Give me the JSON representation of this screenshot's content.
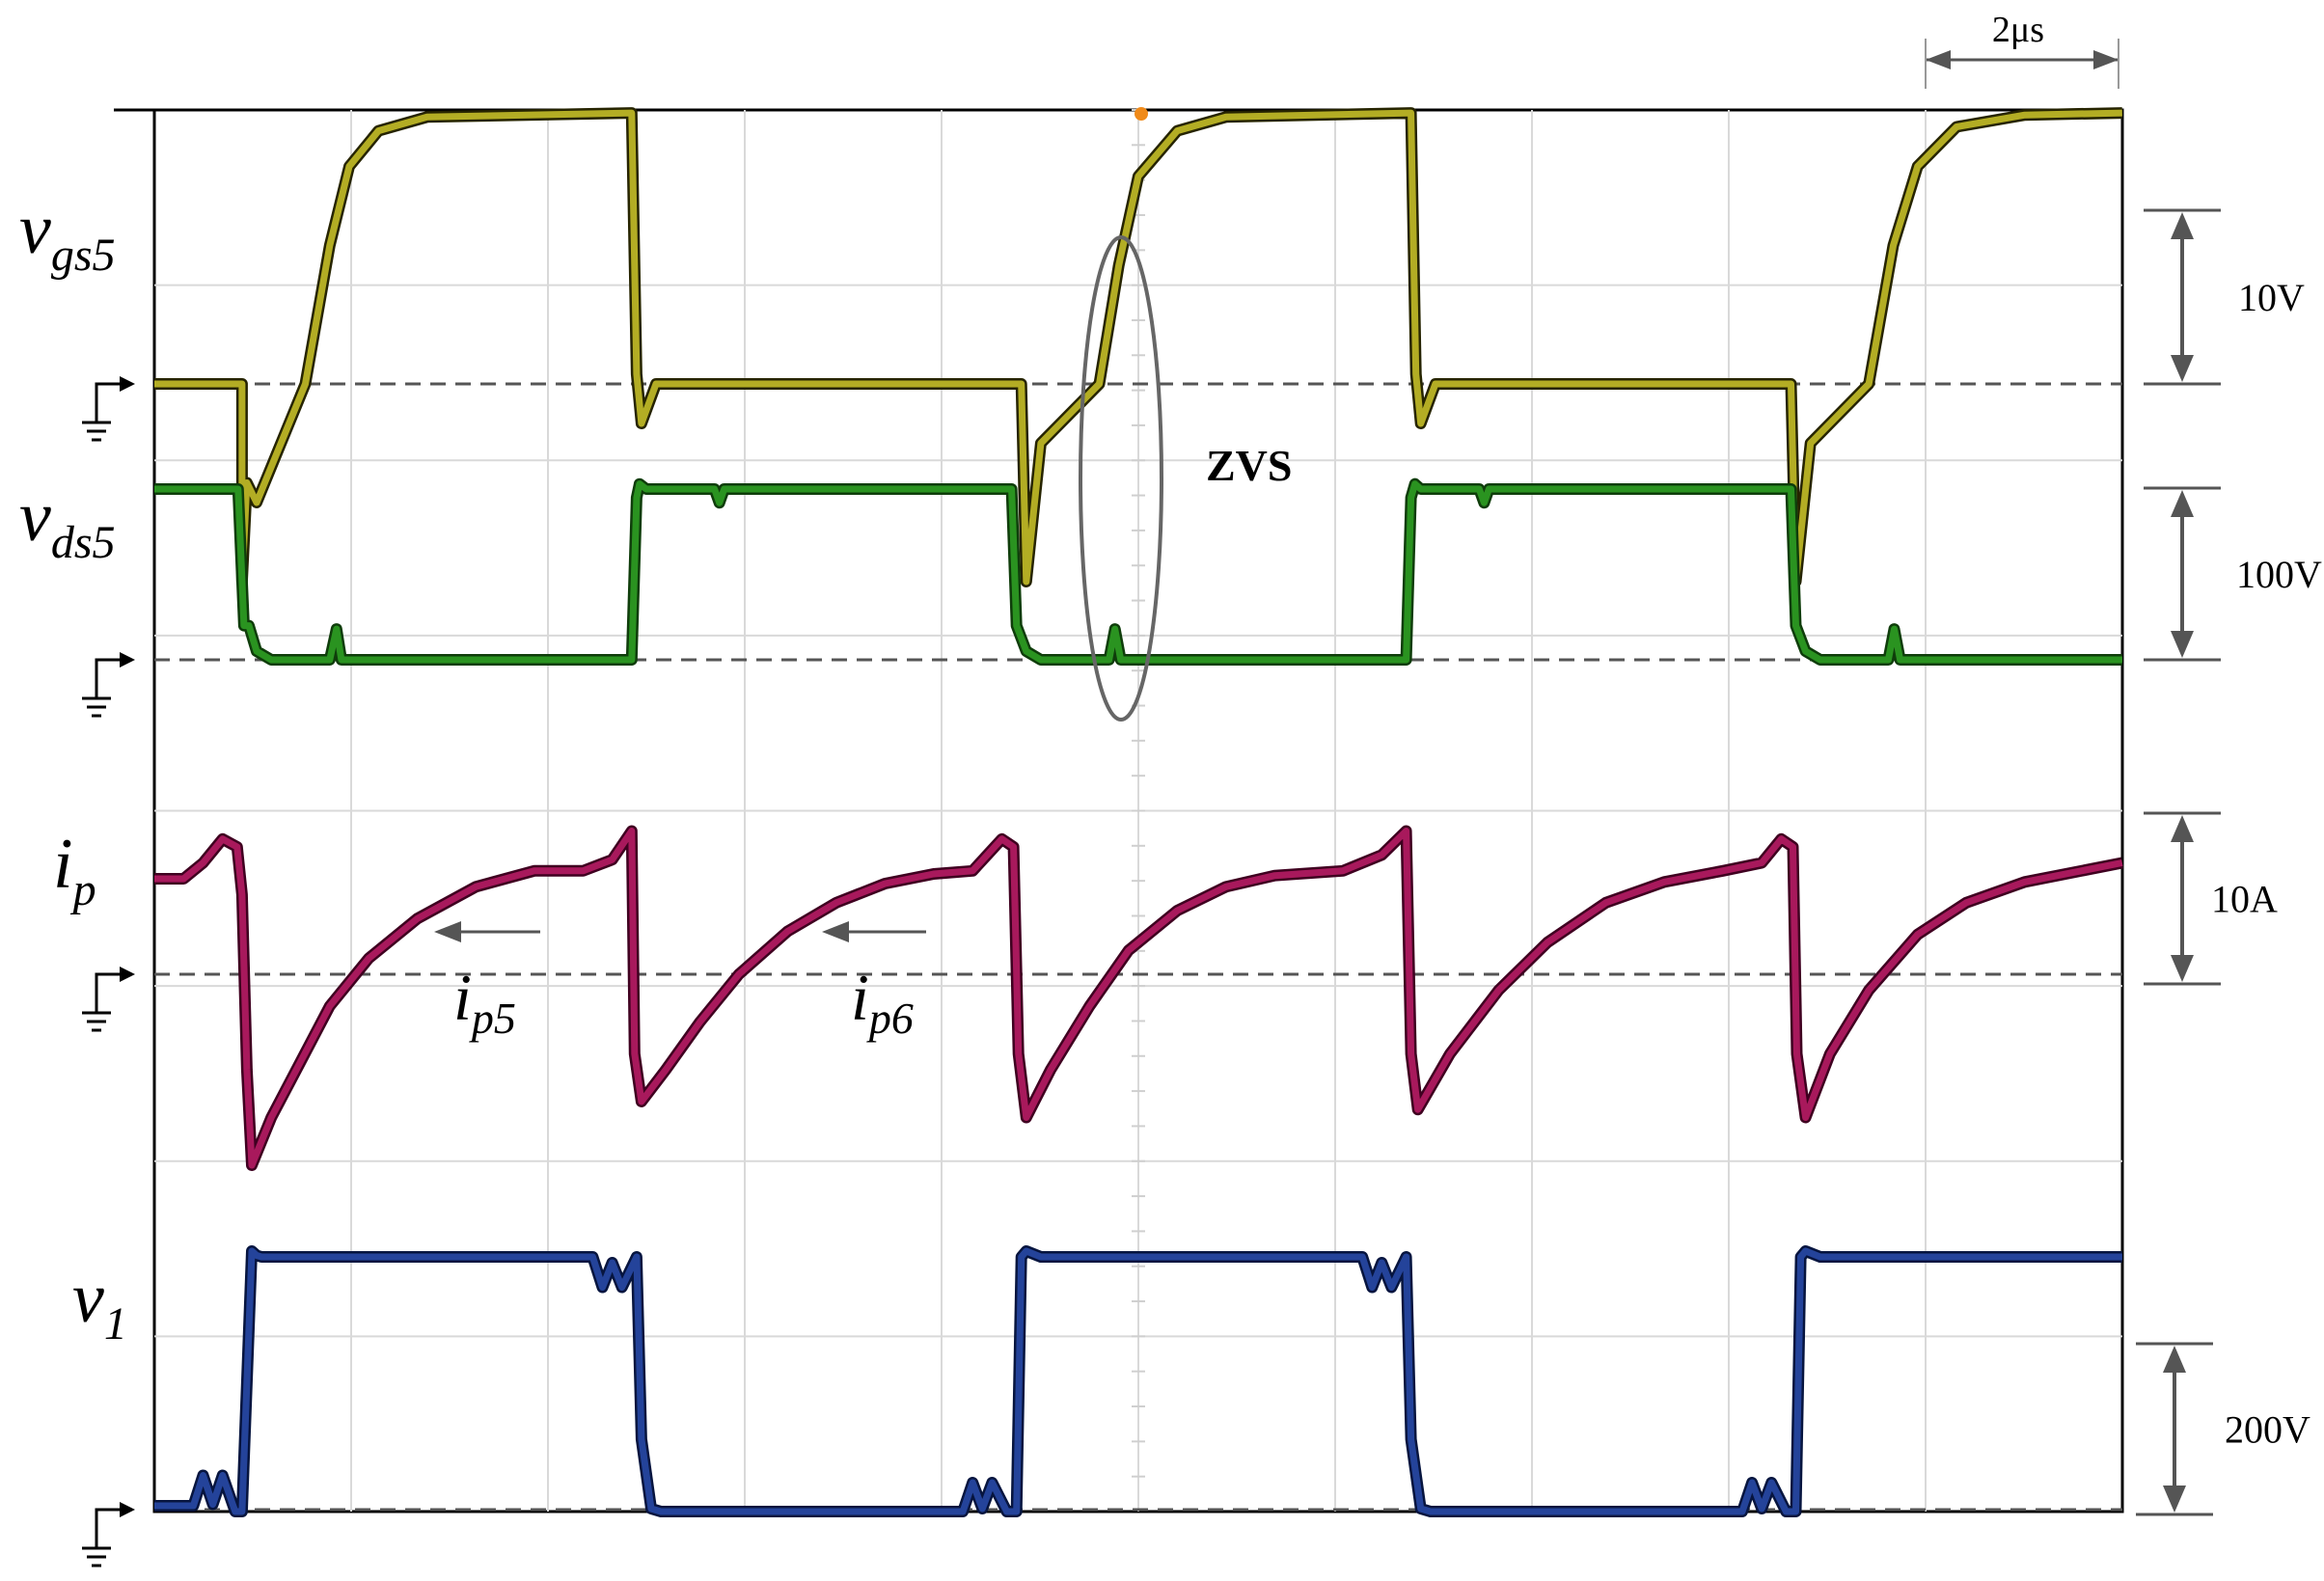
{
  "chart_data": {
    "type": "line",
    "title": "",
    "xlabel": "",
    "ylabel": "",
    "time_scale": "2μs",
    "grid": true,
    "x_divisions": 10,
    "y_divisions": 8,
    "period_us": 8,
    "duty_cycle": 0.5,
    "annotations": [
      {
        "text": "ZVS",
        "kind": "ellipse",
        "target": "vgs5 rise / vds5 at zero"
      },
      {
        "text": "ip5",
        "kind": "arrow-left"
      },
      {
        "text": "ip6",
        "kind": "arrow-left"
      }
    ],
    "series": [
      {
        "id": "vgs5",
        "label_main": "v",
        "label_sub": "gs5",
        "scale_label": "10V",
        "color": "#b3ad24",
        "edge_color": "#262400",
        "points": [
          [
            0,
            0
          ],
          [
            0.9,
            0
          ],
          [
            0.9,
            -1.0
          ],
          [
            0.95,
            -0.5
          ],
          [
            1.05,
            -0.6
          ],
          [
            1.55,
            0
          ],
          [
            1.8,
            0.7
          ],
          [
            2.0,
            1.1
          ],
          [
            2.3,
            1.28
          ],
          [
            2.8,
            1.35
          ],
          [
            4.9,
            1.37
          ],
          [
            4.95,
            0.05
          ],
          [
            5.0,
            -0.2
          ],
          [
            5.15,
            0.0
          ],
          [
            8.9,
            0
          ],
          [
            8.95,
            -1.0
          ],
          [
            9.1,
            -0.3
          ],
          [
            9.7,
            0
          ],
          [
            9.9,
            0.6
          ],
          [
            10.1,
            1.05
          ],
          [
            10.5,
            1.28
          ],
          [
            11.0,
            1.35
          ],
          [
            12.9,
            1.37
          ],
          [
            12.95,
            0.05
          ],
          [
            13.0,
            -0.2
          ],
          [
            13.15,
            0
          ],
          [
            16.8,
            0
          ],
          [
            16.85,
            -1.0
          ],
          [
            17.0,
            -0.3
          ],
          [
            17.6,
            0
          ],
          [
            17.85,
            0.7
          ],
          [
            18.1,
            1.1
          ],
          [
            18.5,
            1.3
          ],
          [
            19.2,
            1.36
          ],
          [
            20.2,
            1.37
          ]
        ]
      },
      {
        "id": "vds5",
        "label_main": "v",
        "label_sub": "ds5",
        "scale_label": "100V",
        "color": "#2a9320",
        "edge_color": "#0f3d0b",
        "points": [
          [
            0,
            1.0
          ],
          [
            0.86,
            1.0
          ],
          [
            0.92,
            0.2
          ],
          [
            0.97,
            0.2
          ],
          [
            1.05,
            0.05
          ],
          [
            1.2,
            0.0
          ],
          [
            1.8,
            0.0
          ],
          [
            1.87,
            0.18
          ],
          [
            1.92,
            0.0
          ],
          [
            4.9,
            0.0
          ],
          [
            4.95,
            0.95
          ],
          [
            4.98,
            1.03
          ],
          [
            5.05,
            1.0
          ],
          [
            5.75,
            1.0
          ],
          [
            5.8,
            0.92
          ],
          [
            5.85,
            1.0
          ],
          [
            8.8,
            1.0
          ],
          [
            8.85,
            0.2
          ],
          [
            8.95,
            0.05
          ],
          [
            9.1,
            0.0
          ],
          [
            9.8,
            0.0
          ],
          [
            9.86,
            0.18
          ],
          [
            9.92,
            0.0
          ],
          [
            12.85,
            0.0
          ],
          [
            12.9,
            0.95
          ],
          [
            12.94,
            1.03
          ],
          [
            13.0,
            1.0
          ],
          [
            13.6,
            1.0
          ],
          [
            13.65,
            0.92
          ],
          [
            13.7,
            1.0
          ],
          [
            16.8,
            1.0
          ],
          [
            16.85,
            0.2
          ],
          [
            16.95,
            0.05
          ],
          [
            17.1,
            0.0
          ],
          [
            17.8,
            0.0
          ],
          [
            17.86,
            0.18
          ],
          [
            17.92,
            0.0
          ],
          [
            20.2,
            0.0
          ]
        ]
      },
      {
        "id": "ip",
        "label_main": "i",
        "label_sub": "p",
        "scale_label": "10A",
        "color": "#a8195c",
        "edge_color": "#3f0020",
        "points": [
          [
            0,
            0.6
          ],
          [
            0.3,
            0.6
          ],
          [
            0.5,
            0.7
          ],
          [
            0.7,
            0.85
          ],
          [
            0.85,
            0.8
          ],
          [
            0.9,
            0.5
          ],
          [
            0.95,
            -0.6
          ],
          [
            1.0,
            -1.2
          ],
          [
            1.2,
            -0.9
          ],
          [
            1.5,
            -0.55
          ],
          [
            1.8,
            -0.2
          ],
          [
            2.2,
            0.1
          ],
          [
            2.7,
            0.35
          ],
          [
            3.3,
            0.55
          ],
          [
            3.9,
            0.65
          ],
          [
            4.4,
            0.65
          ],
          [
            4.7,
            0.72
          ],
          [
            4.9,
            0.9
          ],
          [
            4.93,
            -0.5
          ],
          [
            5.0,
            -0.8
          ],
          [
            5.25,
            -0.6
          ],
          [
            5.6,
            -0.3
          ],
          [
            6.0,
            0.0
          ],
          [
            6.5,
            0.27
          ],
          [
            7.0,
            0.45
          ],
          [
            7.5,
            0.57
          ],
          [
            8.0,
            0.63
          ],
          [
            8.4,
            0.65
          ],
          [
            8.7,
            0.85
          ],
          [
            8.82,
            0.8
          ],
          [
            8.87,
            -0.5
          ],
          [
            8.95,
            -0.9
          ],
          [
            9.2,
            -0.6
          ],
          [
            9.6,
            -0.2
          ],
          [
            10.0,
            0.15
          ],
          [
            10.5,
            0.4
          ],
          [
            11.0,
            0.55
          ],
          [
            11.5,
            0.62
          ],
          [
            12.2,
            0.65
          ],
          [
            12.6,
            0.75
          ],
          [
            12.85,
            0.9
          ],
          [
            12.9,
            -0.5
          ],
          [
            12.97,
            -0.85
          ],
          [
            13.3,
            -0.5
          ],
          [
            13.8,
            -0.1
          ],
          [
            14.3,
            0.2
          ],
          [
            14.9,
            0.45
          ],
          [
            15.5,
            0.58
          ],
          [
            16.1,
            0.65
          ],
          [
            16.5,
            0.7
          ],
          [
            16.7,
            0.85
          ],
          [
            16.82,
            0.8
          ],
          [
            16.86,
            -0.5
          ],
          [
            16.95,
            -0.9
          ],
          [
            17.2,
            -0.5
          ],
          [
            17.6,
            -0.1
          ],
          [
            18.1,
            0.25
          ],
          [
            18.6,
            0.45
          ],
          [
            19.2,
            0.58
          ],
          [
            20.2,
            0.7
          ]
        ]
      },
      {
        "id": "v1",
        "label_main": "v",
        "label_sub": "1",
        "scale_label": "200V",
        "color": "#24439a",
        "edge_color": "#07153f",
        "points": [
          [
            0,
            0.04
          ],
          [
            0.4,
            0.04
          ],
          [
            0.5,
            0.25
          ],
          [
            0.6,
            0.05
          ],
          [
            0.7,
            0.25
          ],
          [
            0.83,
            0.0
          ],
          [
            0.9,
            0.0
          ],
          [
            1.0,
            1.8
          ],
          [
            1.05,
            1.77
          ],
          [
            1.1,
            1.76
          ],
          [
            4.5,
            1.76
          ],
          [
            4.6,
            1.55
          ],
          [
            4.7,
            1.72
          ],
          [
            4.8,
            1.55
          ],
          [
            4.95,
            1.76
          ],
          [
            5.0,
            0.5
          ],
          [
            5.1,
            0.02
          ],
          [
            5.2,
            0.0
          ],
          [
            8.3,
            0.0
          ],
          [
            8.4,
            0.2
          ],
          [
            8.5,
            0.02
          ],
          [
            8.6,
            0.2
          ],
          [
            8.75,
            0.0
          ],
          [
            8.85,
            0.0
          ],
          [
            8.9,
            1.76
          ],
          [
            8.95,
            1.8
          ],
          [
            9.1,
            1.76
          ],
          [
            12.4,
            1.76
          ],
          [
            12.5,
            1.55
          ],
          [
            12.6,
            1.72
          ],
          [
            12.7,
            1.55
          ],
          [
            12.85,
            1.76
          ],
          [
            12.9,
            0.5
          ],
          [
            13.0,
            0.02
          ],
          [
            13.1,
            0.0
          ],
          [
            16.3,
            0.0
          ],
          [
            16.4,
            0.2
          ],
          [
            16.5,
            0.02
          ],
          [
            16.6,
            0.2
          ],
          [
            16.75,
            0.0
          ],
          [
            16.85,
            0.0
          ],
          [
            16.9,
            1.76
          ],
          [
            16.95,
            1.8
          ],
          [
            17.1,
            1.76
          ],
          [
            20.2,
            1.76
          ]
        ]
      }
    ]
  }
}
